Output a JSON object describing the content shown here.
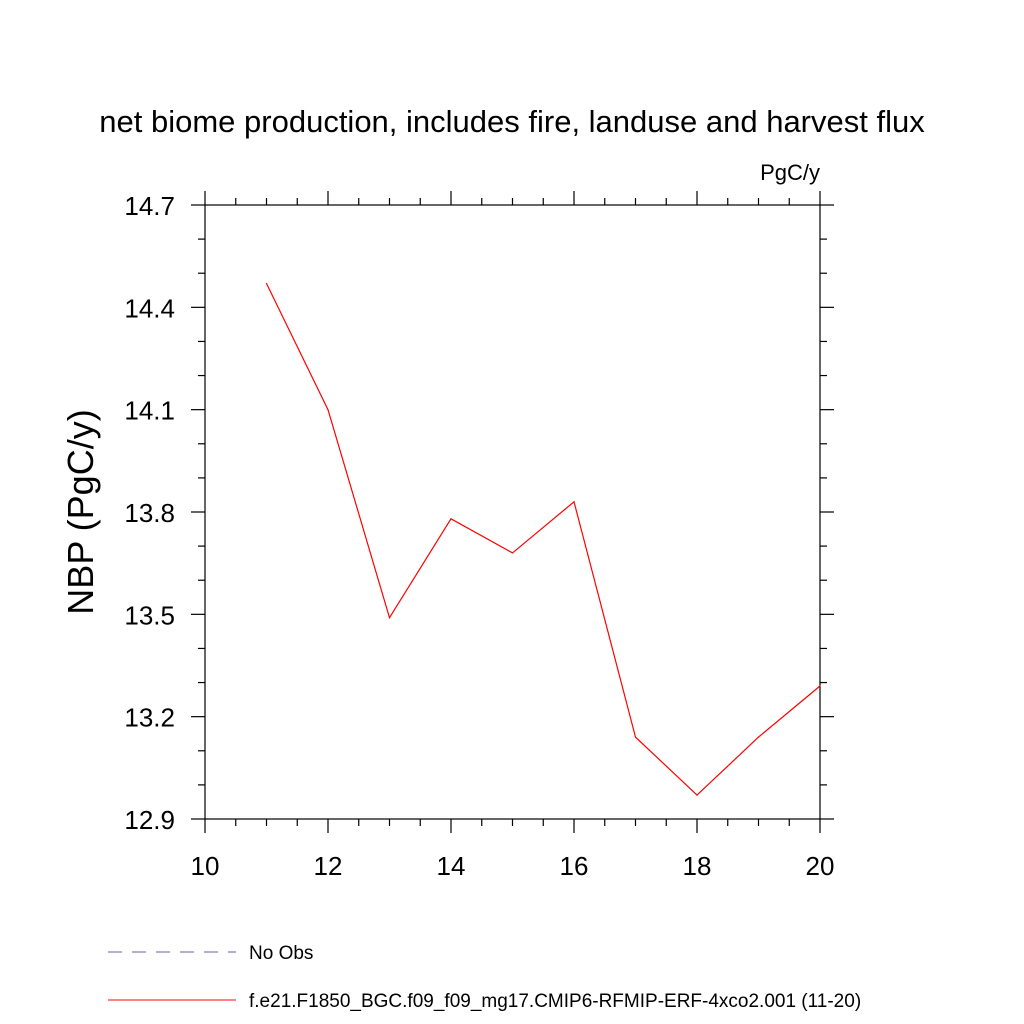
{
  "chart_data": {
    "type": "line",
    "title": "net biome production, includes fire, landuse and harvest flux",
    "units_label": "PgC/y",
    "ylabel": "NBP  (PgC/y)",
    "xlabel": "",
    "xlim": [
      10,
      20
    ],
    "ylim": [
      12.9,
      14.7
    ],
    "x_ticks": [
      10,
      12,
      14,
      16,
      18,
      20
    ],
    "x_tick_labels": [
      "10",
      "12",
      "14",
      "16",
      "18",
      "20"
    ],
    "y_ticks": [
      12.9,
      13.2,
      13.5,
      13.8,
      14.1,
      14.4,
      14.7
    ],
    "y_tick_labels": [
      "12.9",
      "13.2",
      "13.5",
      "13.8",
      "14.1",
      "14.4",
      "14.7"
    ],
    "grid": false,
    "legend_position": "bottom-left",
    "legend": [
      {
        "label": "No Obs",
        "color": "#6a5fa8",
        "style": "dashed"
      },
      {
        "label": "f.e21.F1850_BGC.f09_f09_mg17.CMIP6-RFMIP-ERF-4xco2.001 (11-20)",
        "color": "#ff0000",
        "style": "solid"
      }
    ],
    "series": [
      {
        "name": "f.e21.F1850_BGC.f09_f09_mg17.CMIP6-RFMIP-ERF-4xco2.001 (11-20)",
        "color": "#ff0000",
        "x": [
          11,
          12,
          13,
          14,
          15,
          16,
          17,
          18,
          19,
          20
        ],
        "values": [
          14.47,
          14.1,
          13.49,
          13.78,
          13.68,
          13.83,
          13.14,
          12.97,
          13.14,
          13.29
        ]
      }
    ]
  }
}
